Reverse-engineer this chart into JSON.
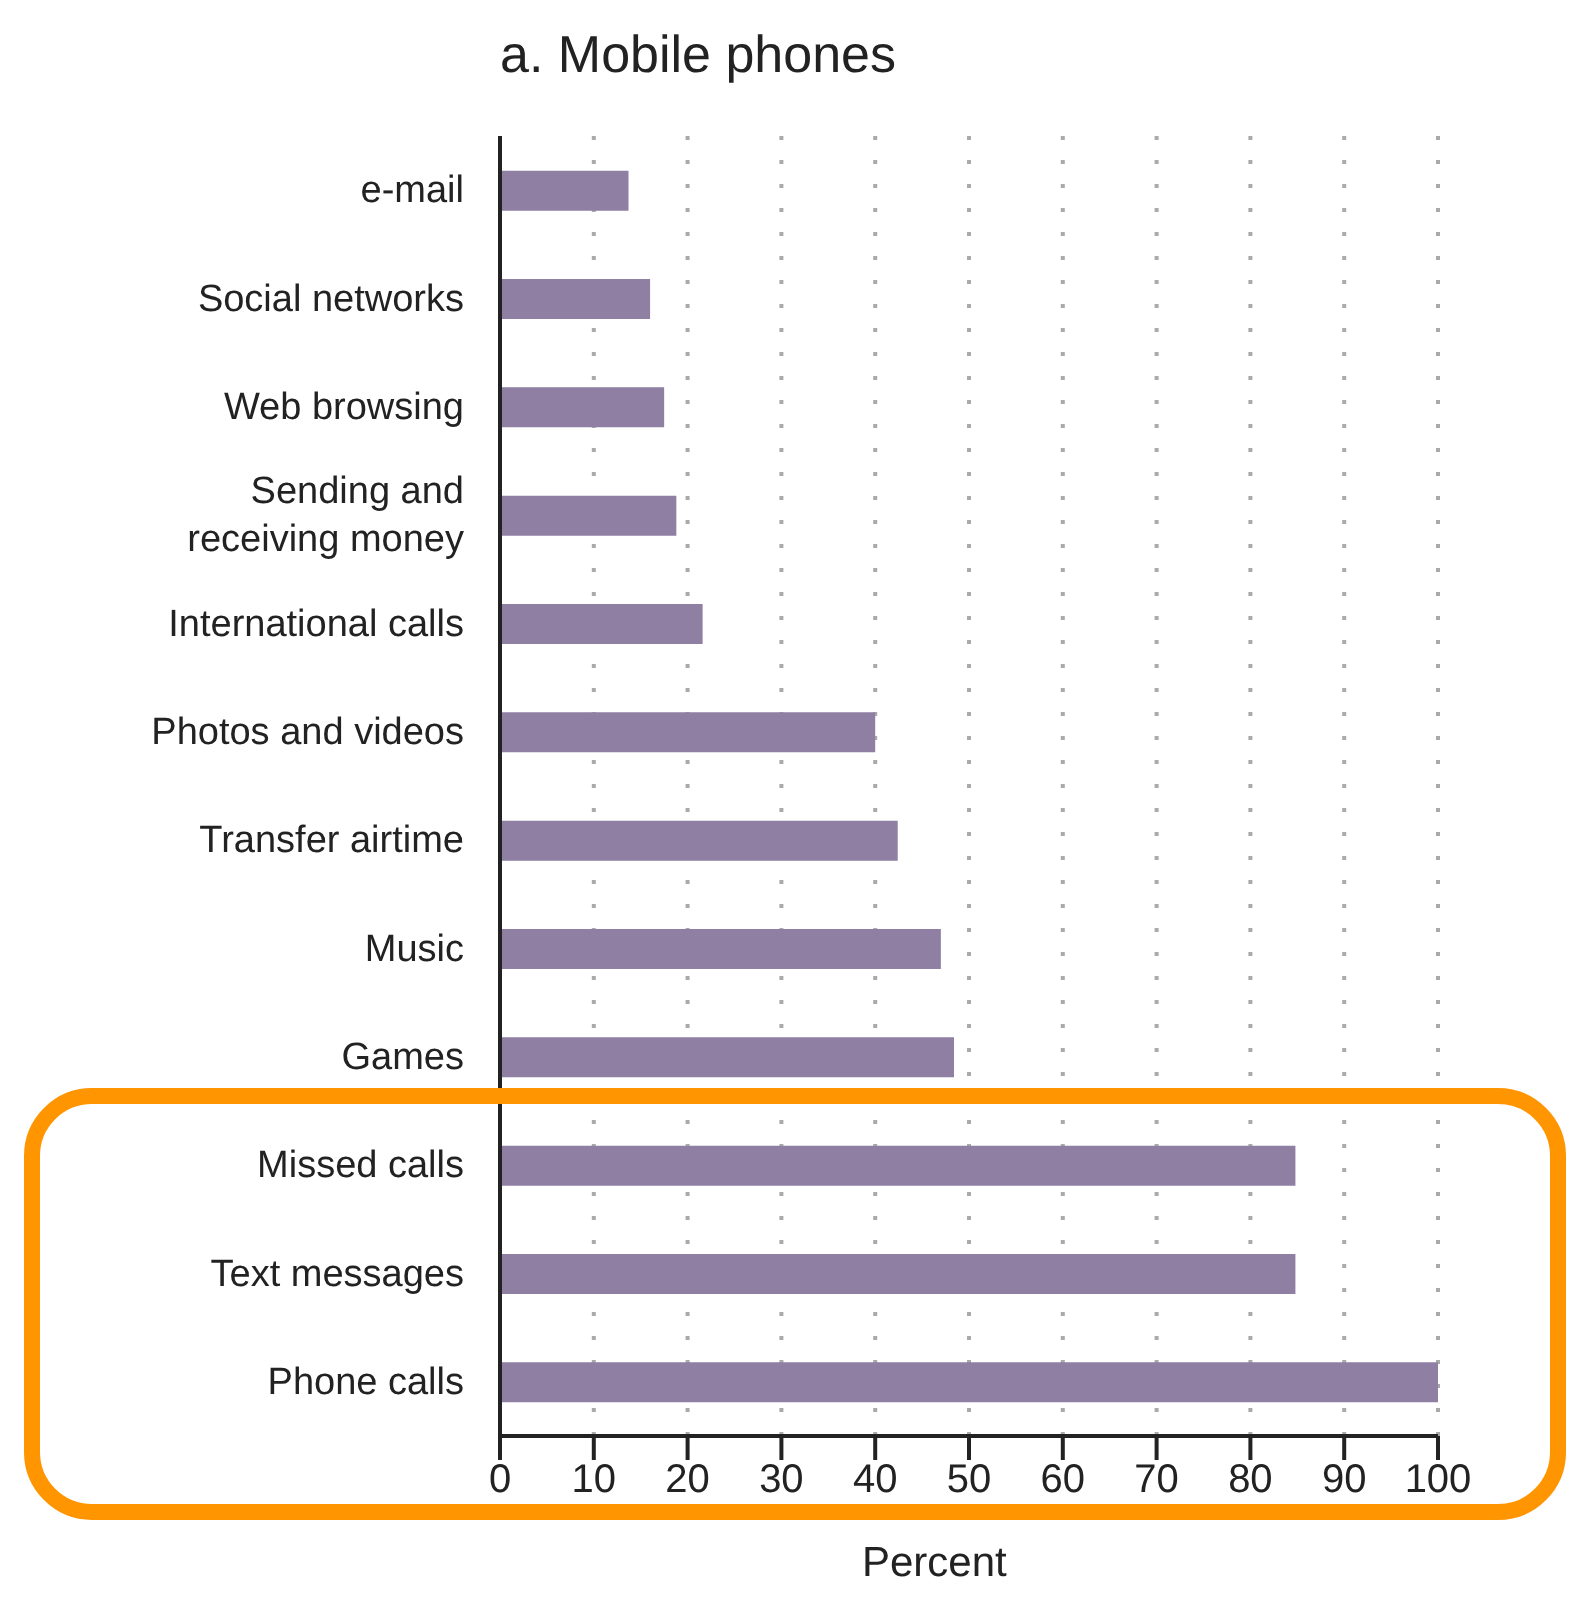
{
  "chart_data": {
    "type": "bar",
    "orientation": "horizontal",
    "title": "a. Mobile phones",
    "xlabel": "Percent",
    "categories": [
      "e-mail",
      "Social networks",
      "Web browsing",
      "Sending and receiving money",
      "International calls",
      "Photos and videos",
      "Transfer airtime",
      "Music",
      "Games",
      "Missed calls",
      "Text messages",
      "Phone calls"
    ],
    "values": [
      13.7,
      16,
      17.5,
      18.8,
      21.6,
      40,
      42.4,
      47,
      48.4,
      84.8,
      84.8,
      100
    ],
    "color": "#8e7fa3",
    "xlim": [
      0,
      100
    ],
    "xticks": [
      0,
      10,
      20,
      30,
      40,
      50,
      60,
      70,
      80,
      90,
      100
    ],
    "grid": "x"
  }
}
